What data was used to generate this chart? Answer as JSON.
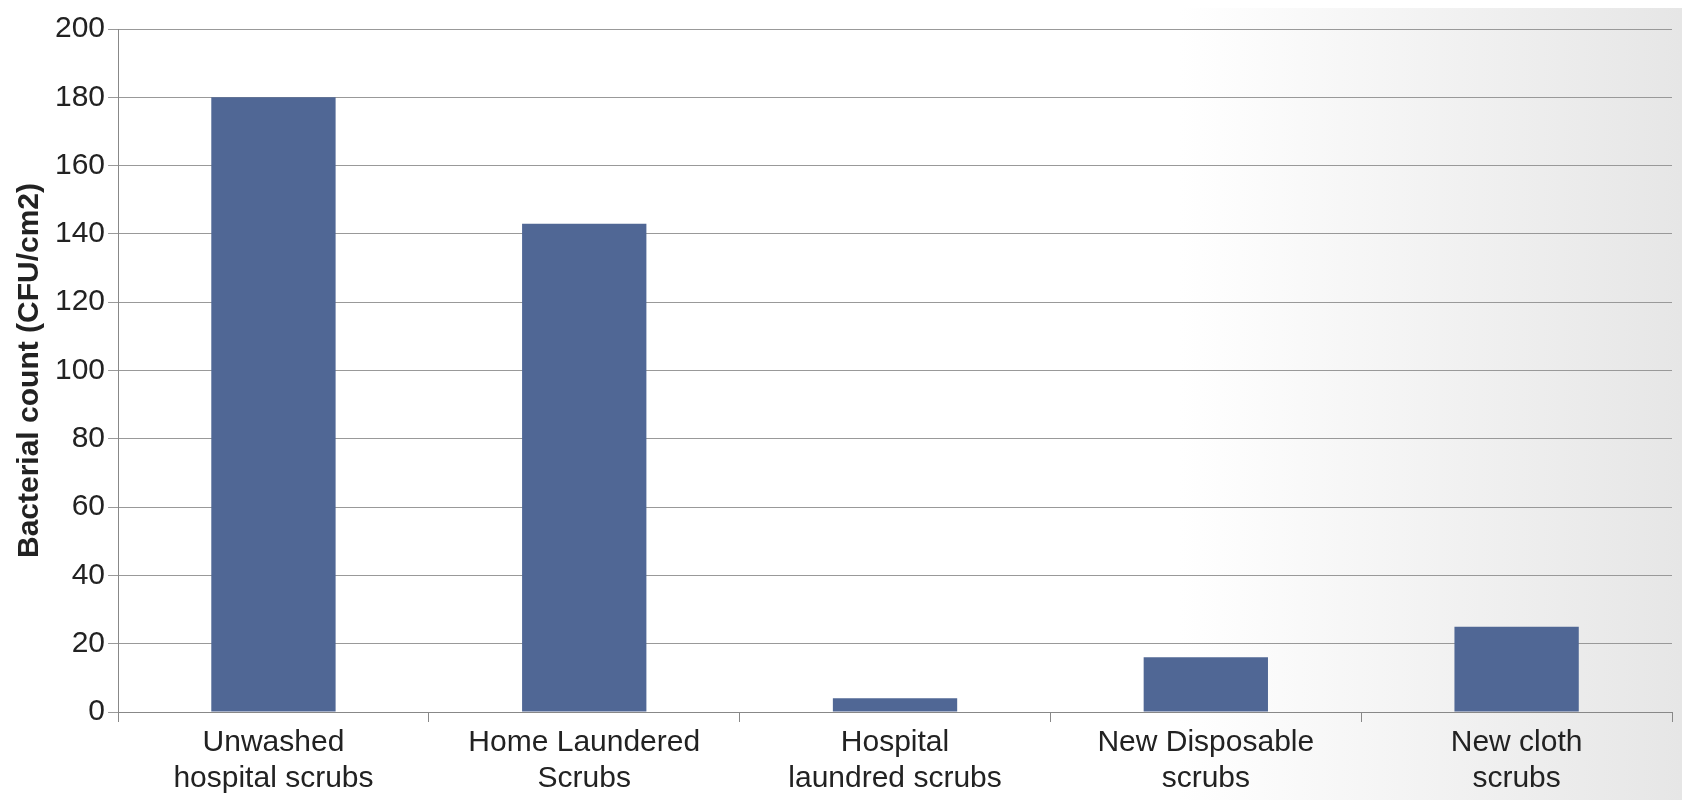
{
  "chart_data": {
    "type": "bar",
    "ylabel": "Bacterial count (CFU/cm2)",
    "categories": [
      "Unwashed hospital scrubs",
      "Home Laundered Scrubs",
      "Hospital laundred scrubs",
      "New Disposable scrubs",
      "New cloth scrubs"
    ],
    "values": [
      180,
      143,
      4,
      16,
      25
    ],
    "color": "#506795",
    "ylim": [
      0,
      200
    ],
    "yticks": [
      0,
      20,
      40,
      60,
      80,
      100,
      120,
      140,
      160,
      180,
      200
    ],
    "grid": "y"
  }
}
